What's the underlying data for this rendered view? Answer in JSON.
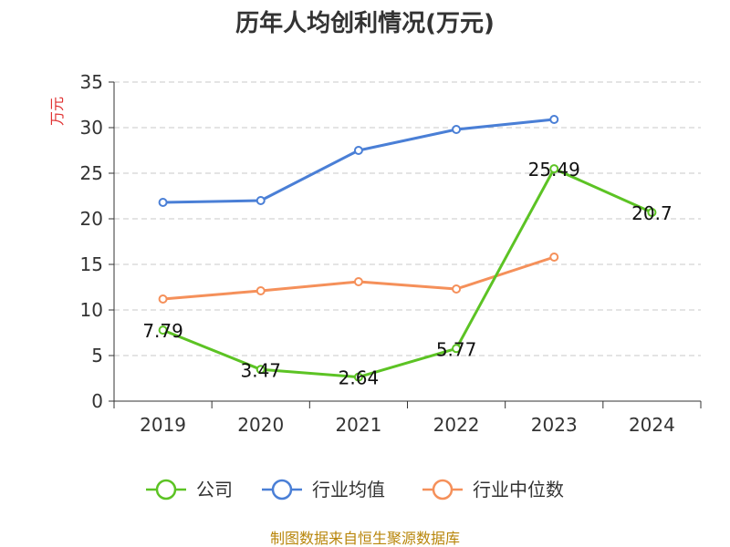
{
  "chart_data": {
    "type": "line",
    "title": "历年人均创利情况(万元)",
    "ylabel": "万元",
    "xlabel": "",
    "ylim": [
      0,
      35
    ],
    "yticks": [
      0,
      5,
      10,
      15,
      20,
      25,
      30,
      35
    ],
    "categories": [
      "2019",
      "2020",
      "2021",
      "2022",
      "2023",
      "2024"
    ],
    "grid": "horizontal dashed",
    "legend_position": "bottom",
    "series": [
      {
        "name": "公司",
        "color": "#5cc324",
        "values": [
          7.79,
          3.47,
          2.64,
          5.77,
          25.49,
          20.7
        ],
        "labels": [
          "7.79",
          "3.47",
          "2.64",
          "5.77",
          "25.49",
          "20.7"
        ]
      },
      {
        "name": "行业均值",
        "color": "#4a7fd6",
        "values": [
          21.8,
          22.0,
          27.5,
          29.8,
          30.9,
          null
        ]
      },
      {
        "name": "行业中位数",
        "color": "#f5905a",
        "values": [
          11.2,
          12.1,
          13.1,
          12.3,
          15.8,
          null
        ]
      }
    ]
  },
  "source": "制图数据来自恒生聚源数据库"
}
